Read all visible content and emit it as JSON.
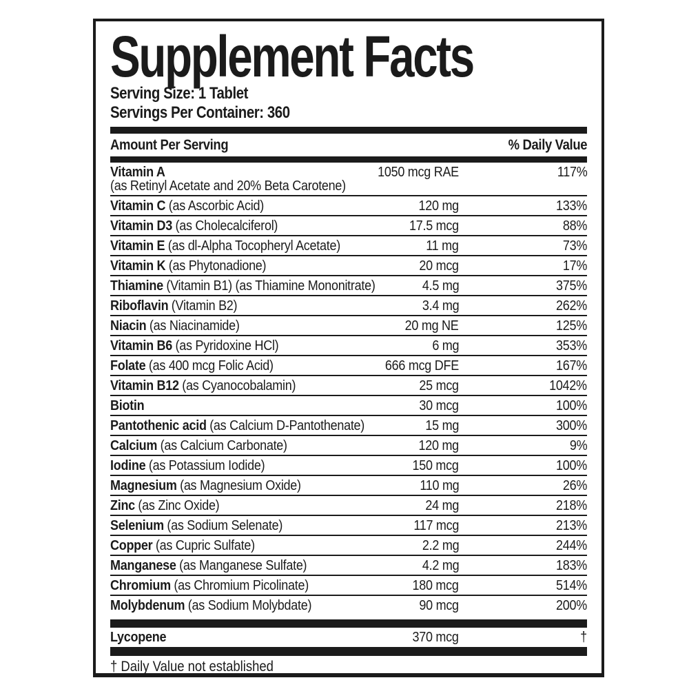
{
  "label": {
    "title": "Supplement Facts",
    "serving_size": "Serving Size: 1 Tablet",
    "servings_per_container": "Servings Per Container: 360",
    "columns": {
      "amount_header": "Amount Per Serving",
      "dv_header": "% Daily Value"
    },
    "rows": [
      {
        "name": "Vitamin A",
        "detail": "",
        "note": "(as Retinyl Acetate and 20% Beta Carotene)",
        "amount": "1050 mcg RAE",
        "dv": "117%"
      },
      {
        "name": "Vitamin C",
        "detail": "(as Ascorbic Acid)",
        "amount": "120 mg",
        "dv": "133%"
      },
      {
        "name": "Vitamin D3",
        "detail": "(as Cholecalciferol)",
        "amount": "17.5 mcg",
        "dv": "88%"
      },
      {
        "name": "Vitamin E",
        "detail": "(as dl-Alpha Tocopheryl Acetate)",
        "amount": "11 mg",
        "dv": "73%"
      },
      {
        "name": "Vitamin K",
        "detail": "(as Phytonadione)",
        "amount": "20 mcg",
        "dv": "17%"
      },
      {
        "name": "Thiamine",
        "detail": "(Vitamin B1) (as Thiamine Mononitrate)",
        "amount": "4.5 mg",
        "dv": "375%"
      },
      {
        "name": "Riboflavin",
        "detail": "(Vitamin B2)",
        "amount": "3.4 mg",
        "dv": "262%"
      },
      {
        "name": "Niacin",
        "detail": "(as Niacinamide)",
        "amount": "20 mg NE",
        "dv": "125%"
      },
      {
        "name": "Vitamin B6",
        "detail": "(as Pyridoxine HCl)",
        "amount": "6 mg",
        "dv": "353%"
      },
      {
        "name": "Folate",
        "detail": "(as 400 mcg Folic Acid)",
        "amount": "666 mcg DFE",
        "dv": "167%"
      },
      {
        "name": "Vitamin B12",
        "detail": "(as Cyanocobalamin)",
        "amount": "25 mcg",
        "dv": "1042%"
      },
      {
        "name": "Biotin",
        "detail": "",
        "amount": "30 mcg",
        "dv": "100%"
      },
      {
        "name": "Pantothenic acid",
        "detail": "(as Calcium D-Pantothenate)",
        "amount": "15 mg",
        "dv": "300%"
      },
      {
        "name": "Calcium",
        "detail": "(as Calcium Carbonate)",
        "amount": "120 mg",
        "dv": "9%"
      },
      {
        "name": "Iodine",
        "detail": "(as Potassium Iodide)",
        "amount": "150 mcg",
        "dv": "100%"
      },
      {
        "name": "Magnesium",
        "detail": "(as Magnesium Oxide)",
        "amount": "110 mg",
        "dv": "26%"
      },
      {
        "name": "Zinc",
        "detail": "(as Zinc Oxide)",
        "amount": "24 mg",
        "dv": "218%"
      },
      {
        "name": "Selenium",
        "detail": "(as Sodium Selenate)",
        "amount": "117 mcg",
        "dv": "213%"
      },
      {
        "name": "Copper",
        "detail": "(as Cupric Sulfate)",
        "amount": "2.2 mg",
        "dv": "244%"
      },
      {
        "name": "Manganese",
        "detail": "(as Manganese Sulfate)",
        "amount": "4.2 mg",
        "dv": "183%"
      },
      {
        "name": "Chromium",
        "detail": "(as Chromium Picolinate)",
        "amount": "180 mcg",
        "dv": "514%"
      },
      {
        "name": "Molybdenum",
        "detail": "(as Sodium Molybdate)",
        "amount": "90 mcg",
        "dv": "200%"
      }
    ],
    "other_rows": [
      {
        "name": "Lycopene",
        "detail": "",
        "amount": "370 mcg",
        "dv": "†"
      }
    ],
    "footnote": "† Daily Value not established",
    "colors": {
      "ink": "#1b1b1b",
      "background": "#ffffff"
    }
  }
}
